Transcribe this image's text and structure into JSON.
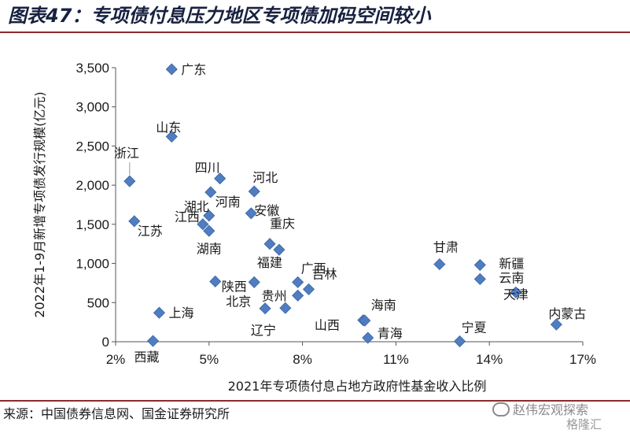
{
  "title": "图表47：专项债付息压力地区专项债加码空间较小",
  "source": "来源：中国债券信息网、国金证券研究所",
  "watermark": "赵伟宏观探索",
  "watermark2": "格隆汇",
  "colors": {
    "marker": "#4F7DBF",
    "rule": "#8c2b2b",
    "title": "#17213f"
  },
  "chart_data": {
    "type": "scatter",
    "xlabel": "2021年专项债付息占地方政府性基金收入比例",
    "ylabel": "2022年1-9月新增专项债发行规模(亿元)",
    "xlim": [
      0.02,
      0.17
    ],
    "ylim": [
      0,
      3500
    ],
    "xticks": [
      0.02,
      0.05,
      0.08,
      0.11,
      0.14,
      0.17
    ],
    "xtick_labels": [
      "2%",
      "5%",
      "8%",
      "11%",
      "14%",
      "17%"
    ],
    "yticks": [
      0,
      500,
      1000,
      1500,
      2000,
      2500,
      3000,
      3500
    ],
    "ytick_labels": [
      "0",
      "500",
      "1,000",
      "1,500",
      "2,000",
      "2,500",
      "3,000",
      "3,500"
    ],
    "grid": false,
    "points": [
      {
        "label": "广东",
        "x": 0.038,
        "y": 3480
      },
      {
        "label": "山东",
        "x": 0.038,
        "y": 2620
      },
      {
        "label": "浙江",
        "x": 0.0245,
        "y": 2050
      },
      {
        "label": "四川",
        "x": 0.0535,
        "y": 2085
      },
      {
        "label": "河北",
        "x": 0.0645,
        "y": 1920
      },
      {
        "label": "河南",
        "x": 0.0505,
        "y": 1910
      },
      {
        "label": "湖北",
        "x": 0.05,
        "y": 1610
      },
      {
        "label": "安徽",
        "x": 0.0635,
        "y": 1640
      },
      {
        "label": "江西",
        "x": 0.048,
        "y": 1500
      },
      {
        "label": "湖南",
        "x": 0.05,
        "y": 1415
      },
      {
        "label": "江苏",
        "x": 0.026,
        "y": 1540
      },
      {
        "label": "重庆",
        "x": 0.0695,
        "y": 1250
      },
      {
        "label": "福建",
        "x": 0.0725,
        "y": 1175
      },
      {
        "label": "广西",
        "x": 0.0785,
        "y": 760
      },
      {
        "label": "吉林",
        "x": 0.082,
        "y": 670
      },
      {
        "label": "陕西",
        "x": 0.052,
        "y": 770
      },
      {
        "label": "北京",
        "x": 0.0645,
        "y": 760
      },
      {
        "label": "贵州",
        "x": 0.0785,
        "y": 590
      },
      {
        "label": "辽宁",
        "x": 0.0745,
        "y": 430
      },
      {
        "label": "",
        "x": 0.068,
        "y": 425
      },
      {
        "label": "上海",
        "x": 0.034,
        "y": 370
      },
      {
        "label": "西藏",
        "x": 0.032,
        "y": 10
      },
      {
        "label": "山西",
        "x": 0.0995,
        "y": 275
      },
      {
        "label": "海南",
        "x": 0.1,
        "y": 270
      },
      {
        "label": "青海",
        "x": 0.101,
        "y": 50
      },
      {
        "label": "甘肃",
        "x": 0.124,
        "y": 990
      },
      {
        "label": "新疆",
        "x": 0.137,
        "y": 980
      },
      {
        "label": "云南",
        "x": 0.137,
        "y": 800
      },
      {
        "label": "天津",
        "x": 0.1485,
        "y": 630
      },
      {
        "label": "宁夏",
        "x": 0.1305,
        "y": 5
      },
      {
        "label": "内蒙古",
        "x": 0.1615,
        "y": 220
      }
    ]
  }
}
